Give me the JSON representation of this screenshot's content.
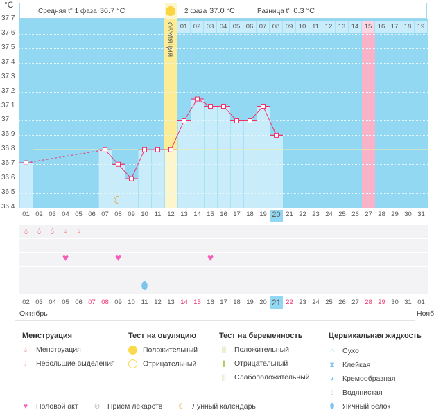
{
  "header": {
    "unit": "°C",
    "phase1_label": "Средняя t° 1 фаза",
    "phase1_value": "36.7 °C",
    "phase2_label": "2 фаза",
    "phase2_value": "37.0 °C",
    "diff_label": "Разница t°",
    "diff_value": "0.3 °C",
    "ovulation_label": "ОВУЛЯЦИЯ"
  },
  "chart_data": {
    "type": "line",
    "ylim": [
      36.4,
      37.7
    ],
    "yticks": [
      "37.7",
      "37.6",
      "37.5",
      "37.4",
      "37.3",
      "37.2",
      "37.1",
      "37",
      "36.9",
      "36.8",
      "36.7",
      "36.6",
      "36.5",
      "36.4"
    ],
    "cycle_days": [
      "01",
      "02",
      "03",
      "04",
      "05",
      "06",
      "07",
      "08",
      "09",
      "10",
      "11",
      "12",
      "13",
      "14",
      "15",
      "16",
      "17",
      "18",
      "19",
      "20",
      "21",
      "22",
      "23",
      "24",
      "25",
      "26",
      "27",
      "28",
      "29",
      "30",
      "31"
    ],
    "temperatures": [
      36.71,
      null,
      null,
      null,
      null,
      null,
      36.8,
      36.7,
      36.6,
      36.8,
      36.8,
      36.8,
      37.0,
      37.15,
      37.1,
      37.1,
      37.0,
      37.0,
      37.1,
      36.9,
      null,
      null,
      null,
      null,
      null,
      null,
      null,
      null,
      null,
      null,
      null
    ],
    "coverline": 36.8,
    "ovulation_day": 12,
    "highlight_pink_day": 27,
    "current_day": 20,
    "post_ovulation_days": [
      "01",
      "02",
      "03",
      "04",
      "05",
      "06",
      "07",
      "08",
      "09",
      "10",
      "11",
      "12",
      "13",
      "14",
      "15",
      "16",
      "17",
      "18",
      "19"
    ],
    "dates": [
      "02",
      "03",
      "04",
      "05",
      "06",
      "07",
      "08",
      "09",
      "10",
      "11",
      "12",
      "13",
      "14",
      "15",
      "16",
      "17",
      "18",
      "19",
      "20",
      "21",
      "22",
      "23",
      "24",
      "25",
      "26",
      "27",
      "28",
      "29",
      "30",
      "31",
      "01"
    ],
    "weekend_dates_idx": [
      5,
      6,
      12,
      13,
      20,
      26,
      27
    ],
    "current_date_idx": 19,
    "month": "Октябрь",
    "next_month": "Нояб",
    "menstruation": {
      "heavy": [
        1,
        2,
        3
      ],
      "light": [
        4,
        5
      ]
    },
    "intercourse_days": [
      4,
      8,
      15
    ],
    "egg_white_days": [
      10
    ],
    "moon_days": [
      8
    ],
    "colors": {
      "bg": "#92d8f2",
      "bar": "#c9ecfb",
      "line": "#f0306a",
      "ovulation": "#fcec96",
      "pink": "#f8b3c8",
      "coverline": "#f6f1a6"
    }
  },
  "legend": {
    "menstruation": {
      "title": "Менструация",
      "items": [
        "Менструация",
        "Небольшие выделения"
      ]
    },
    "ovulation_test": {
      "title": "Тест на овуляцию",
      "items": [
        "Положительный",
        "Отрицательный"
      ]
    },
    "pregnancy_test": {
      "title": "Тест на беременность",
      "items": [
        "Положительный",
        "Отрицательный",
        "Слабоположительный"
      ]
    },
    "cervical": {
      "title": "Цервикальная жидкость",
      "items": [
        "Сухо",
        "Клейкая",
        "Кремообразная",
        "Водянистая",
        "Яичный белок"
      ]
    },
    "other": [
      "Половой акт",
      "Прием лекарств",
      "Лунный календарь"
    ]
  }
}
